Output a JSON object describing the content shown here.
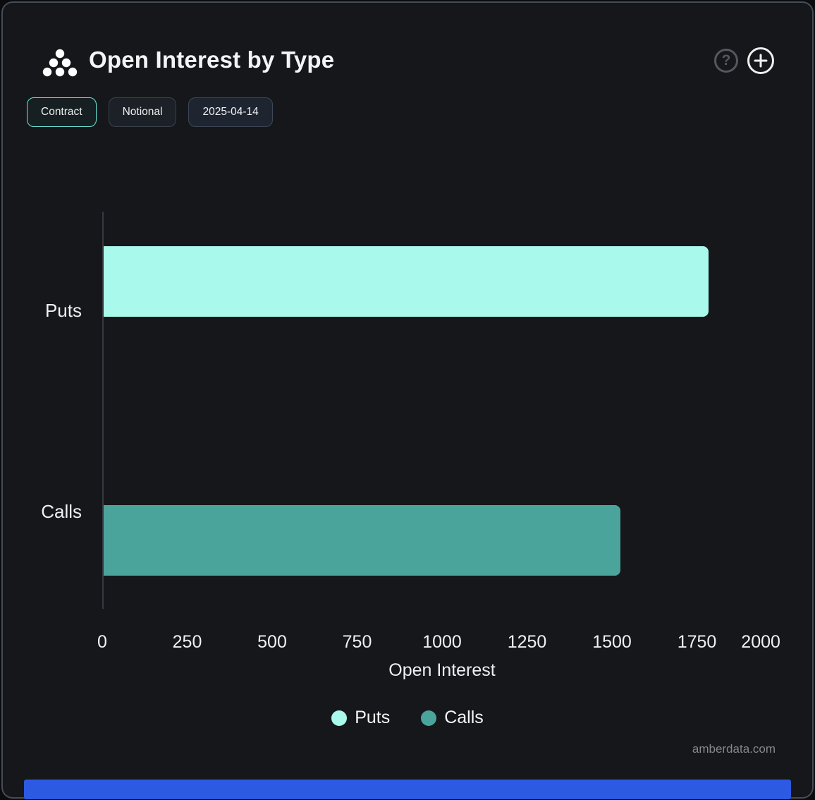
{
  "header": {
    "title": "Open Interest by Type",
    "help_icon": "?",
    "logo_icon": "amberdata-dots-pyramid"
  },
  "toolbar": {
    "buttons": [
      {
        "label": "Contract",
        "active": true
      },
      {
        "label": "Notional",
        "active": false
      },
      {
        "label": "2025-04-14",
        "active": false
      }
    ]
  },
  "chart_data": {
    "type": "bar",
    "orientation": "horizontal",
    "title": "Open Interest by Type",
    "categories": [
      "Puts",
      "Calls"
    ],
    "series": [
      {
        "name": "Puts",
        "values": [
          1780,
          0
        ],
        "color": "#a9f9ec"
      },
      {
        "name": "Calls",
        "values": [
          0,
          1520
        ],
        "color": "#4aa49c"
      }
    ],
    "xlabel": "Open Interest",
    "ylabel": "",
    "xlim": [
      0,
      2000
    ],
    "xticks": [
      0,
      250,
      500,
      750,
      1000,
      1250,
      1500,
      1750,
      2000
    ],
    "grid": false,
    "legend_position": "bottom"
  },
  "legend": {
    "items": [
      {
        "label": "Puts",
        "color": "#a9f9ec"
      },
      {
        "label": "Calls",
        "color": "#4aa49c"
      }
    ]
  },
  "watermark": "amberdata.com",
  "colors": {
    "background": "#15171a",
    "card_border": "#454c59",
    "accent_active_border": "#6ee7d7",
    "puts_bar": "#a9f9ec",
    "calls_bar": "#4aa49c",
    "axis_line": "#35393f",
    "text": "#eef0f1",
    "muted_text": "#84888c",
    "bottom_bar": "#2d5ae2"
  }
}
